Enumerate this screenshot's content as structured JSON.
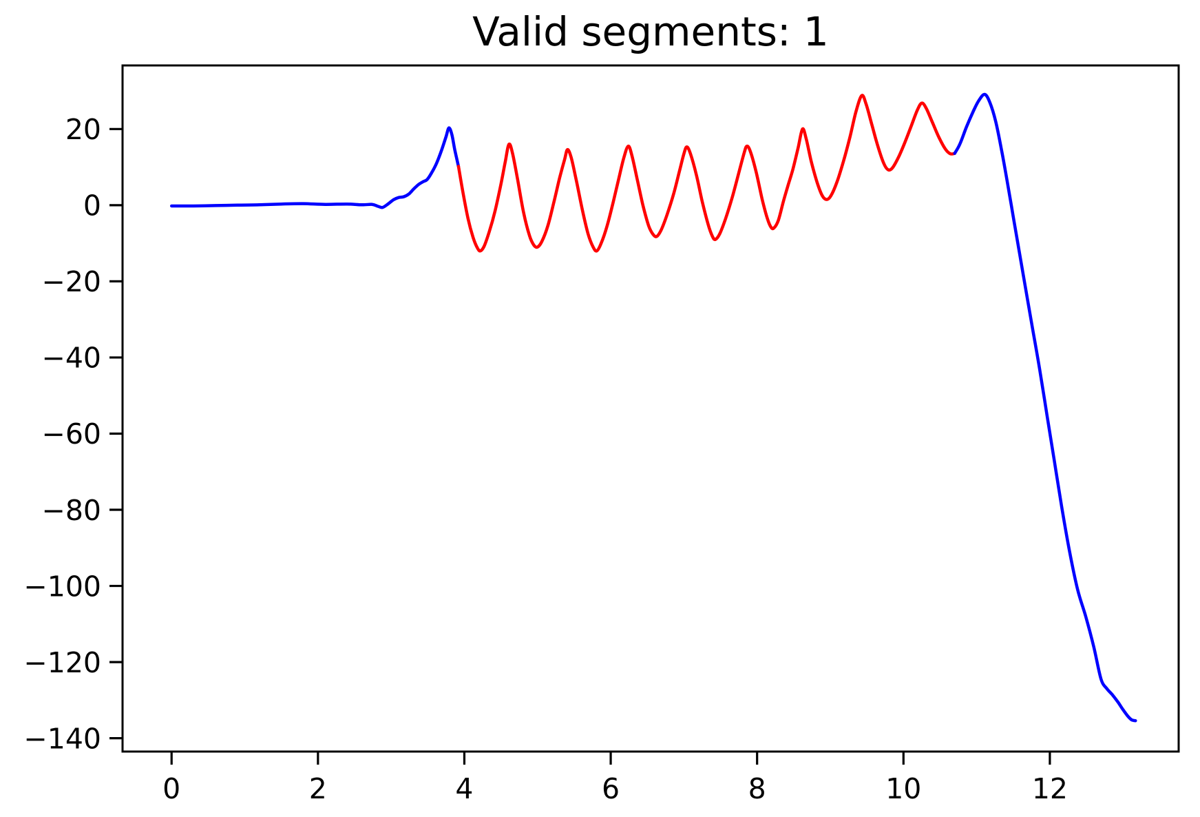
{
  "chart_data": {
    "type": "line",
    "title": "Valid segments: 1",
    "xlabel": "",
    "ylabel": "",
    "xlim": [
      -0.67,
      13.76
    ],
    "ylim": [
      -143.5,
      36.7
    ],
    "xticks": [
      0,
      2,
      4,
      6,
      8,
      10,
      12
    ],
    "yticks": [
      20,
      0,
      -20,
      -40,
      -60,
      -80,
      -100,
      -120,
      -140
    ],
    "grid": false,
    "legend": "none",
    "line_width": 4.5,
    "axis_color": "#000000",
    "series": [
      {
        "name": "leading-blue-segment",
        "color": "#0000FF",
        "points": [
          [
            0,
            -0.2
          ],
          [
            0.3,
            -0.2
          ],
          [
            0.6,
            -0.1
          ],
          [
            0.9,
            0
          ],
          [
            1.2,
            0.1
          ],
          [
            1.5,
            0.3
          ],
          [
            1.8,
            0.4
          ],
          [
            2.1,
            0.2
          ],
          [
            2.4,
            0.3
          ],
          [
            2.6,
            0.1
          ],
          [
            2.74,
            0.2
          ],
          [
            2.82,
            -0.3
          ],
          [
            2.88,
            -0.6
          ],
          [
            2.95,
            0.2
          ],
          [
            3.03,
            1.4
          ],
          [
            3.1,
            2.0
          ],
          [
            3.17,
            2.2
          ],
          [
            3.24,
            2.9
          ],
          [
            3.31,
            4.3
          ],
          [
            3.38,
            5.5
          ],
          [
            3.44,
            6.2
          ],
          [
            3.49,
            6.7
          ],
          [
            3.55,
            8.4
          ],
          [
            3.62,
            11
          ],
          [
            3.69,
            14.5
          ],
          [
            3.75,
            18
          ],
          [
            3.79,
            20.3
          ],
          [
            3.83,
            18.5
          ],
          [
            3.87,
            14.5
          ],
          [
            3.92,
            10.2
          ]
        ]
      },
      {
        "name": "valid-red-segment",
        "color": "#FF0000",
        "points": [
          [
            3.92,
            10.2
          ],
          [
            3.98,
            3.5
          ],
          [
            4.05,
            -3.5
          ],
          [
            4.12,
            -8.5
          ],
          [
            4.18,
            -11.3
          ],
          [
            4.22,
            -12
          ],
          [
            4.27,
            -10.8
          ],
          [
            4.34,
            -7
          ],
          [
            4.42,
            -1.5
          ],
          [
            4.5,
            5.5
          ],
          [
            4.56,
            11.5
          ],
          [
            4.61,
            16
          ],
          [
            4.66,
            13.5
          ],
          [
            4.73,
            6.5
          ],
          [
            4.81,
            -2
          ],
          [
            4.89,
            -8
          ],
          [
            4.95,
            -10.5
          ],
          [
            5.0,
            -11
          ],
          [
            5.06,
            -9.5
          ],
          [
            5.14,
            -5.5
          ],
          [
            5.22,
            0.5
          ],
          [
            5.3,
            7
          ],
          [
            5.37,
            12
          ],
          [
            5.41,
            14.6
          ],
          [
            5.46,
            12.5
          ],
          [
            5.53,
            6.5
          ],
          [
            5.61,
            -1
          ],
          [
            5.69,
            -7.5
          ],
          [
            5.76,
            -11
          ],
          [
            5.81,
            -12
          ],
          [
            5.87,
            -10
          ],
          [
            5.95,
            -5.5
          ],
          [
            6.03,
            0.5
          ],
          [
            6.11,
            7
          ],
          [
            6.18,
            12.5
          ],
          [
            6.24,
            15.5
          ],
          [
            6.29,
            13
          ],
          [
            6.36,
            7
          ],
          [
            6.44,
            0
          ],
          [
            6.52,
            -5.5
          ],
          [
            6.58,
            -7.7
          ],
          [
            6.63,
            -8.2
          ],
          [
            6.69,
            -6.5
          ],
          [
            6.77,
            -2.5
          ],
          [
            6.86,
            3
          ],
          [
            6.94,
            9
          ],
          [
            7.0,
            13.5
          ],
          [
            7.04,
            15.3
          ],
          [
            7.09,
            13.5
          ],
          [
            7.17,
            8
          ],
          [
            7.25,
            1
          ],
          [
            7.33,
            -5
          ],
          [
            7.39,
            -8.2
          ],
          [
            7.43,
            -9
          ],
          [
            7.49,
            -7.5
          ],
          [
            7.57,
            -3.5
          ],
          [
            7.66,
            2
          ],
          [
            7.75,
            8.5
          ],
          [
            7.82,
            13.5
          ],
          [
            7.86,
            15.5
          ],
          [
            7.91,
            14
          ],
          [
            7.99,
            8.5
          ],
          [
            8.07,
            1.5
          ],
          [
            8.14,
            -3.5
          ],
          [
            8.19,
            -5.8
          ],
          [
            8.23,
            -6
          ],
          [
            8.29,
            -4
          ],
          [
            8.36,
            1
          ],
          [
            8.42,
            5
          ],
          [
            8.49,
            9.5
          ],
          [
            8.56,
            15
          ],
          [
            8.62,
            20
          ],
          [
            8.67,
            17.5
          ],
          [
            8.74,
            11.5
          ],
          [
            8.82,
            6
          ],
          [
            8.89,
            2.5
          ],
          [
            8.95,
            1.5
          ],
          [
            9.01,
            2.5
          ],
          [
            9.09,
            6
          ],
          [
            9.18,
            11.5
          ],
          [
            9.27,
            18
          ],
          [
            9.35,
            24.5
          ],
          [
            9.43,
            28.8
          ],
          [
            9.49,
            26.5
          ],
          [
            9.57,
            21
          ],
          [
            9.65,
            15.5
          ],
          [
            9.73,
            11
          ],
          [
            9.79,
            9.3
          ],
          [
            9.85,
            9.8
          ],
          [
            9.93,
            12.5
          ],
          [
            10.02,
            16.5
          ],
          [
            10.11,
            21
          ],
          [
            10.19,
            25
          ],
          [
            10.25,
            26.8
          ],
          [
            10.31,
            25.5
          ],
          [
            10.39,
            22
          ],
          [
            10.48,
            18
          ],
          [
            10.57,
            14.8
          ],
          [
            10.64,
            13.5
          ],
          [
            10.7,
            13.6
          ]
        ]
      },
      {
        "name": "trailing-blue-segment",
        "color": "#0000FF",
        "points": [
          [
            10.7,
            13.6
          ],
          [
            10.77,
            16
          ],
          [
            10.86,
            20.5
          ],
          [
            10.95,
            24.5
          ],
          [
            11.03,
            27.5
          ],
          [
            11.11,
            29.1
          ],
          [
            11.18,
            27
          ],
          [
            11.26,
            22
          ],
          [
            11.34,
            14.5
          ],
          [
            11.42,
            6
          ],
          [
            11.5,
            -3
          ],
          [
            11.58,
            -12
          ],
          [
            11.67,
            -22
          ],
          [
            11.76,
            -32
          ],
          [
            11.86,
            -43
          ],
          [
            11.96,
            -55
          ],
          [
            12.06,
            -67
          ],
          [
            12.16,
            -79
          ],
          [
            12.27,
            -91
          ],
          [
            12.38,
            -101
          ],
          [
            12.49,
            -108
          ],
          [
            12.6,
            -116
          ],
          [
            12.7,
            -124.5
          ],
          [
            12.78,
            -127
          ],
          [
            12.85,
            -128.5
          ],
          [
            12.93,
            -130.5
          ],
          [
            13.0,
            -132.5
          ],
          [
            13.07,
            -134.3
          ],
          [
            13.12,
            -135.2
          ],
          [
            13.17,
            -135.4
          ]
        ]
      }
    ]
  }
}
